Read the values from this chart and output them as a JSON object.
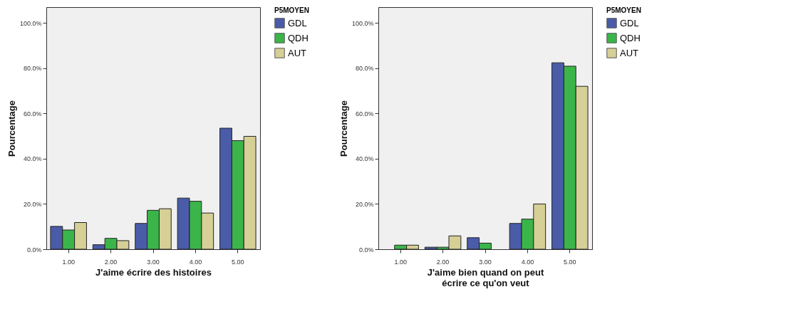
{
  "chart_data": [
    {
      "type": "bar",
      "xlabel": "J'aime écrire des histoires",
      "ylabel": "Pourcentage",
      "legend_title": "P5MOYEN",
      "legend": "top right",
      "grid": false,
      "categories": [
        "1.00",
        "2.00",
        "3.00",
        "4.00",
        "5.00"
      ],
      "ylim": [
        0,
        107
      ],
      "yticks": [
        {
          "value": 0,
          "label": "0.0%"
        },
        {
          "value": 20,
          "label": "20.0%"
        },
        {
          "value": 40,
          "label": "40.0%"
        },
        {
          "value": 60,
          "label": "60.0%"
        },
        {
          "value": 80,
          "label": "80.0%"
        },
        {
          "value": 100,
          "label": "100.0%"
        }
      ],
      "series": [
        {
          "name": "GDL",
          "color": "#4a5ca8",
          "values": [
            10.1,
            2.0,
            11.4,
            22.6,
            53.5
          ]
        },
        {
          "name": "QDH",
          "color": "#3bb54a",
          "values": [
            8.5,
            4.8,
            17.2,
            21.2,
            48.0
          ]
        },
        {
          "name": "AUT",
          "color": "#d6cf96",
          "values": [
            11.8,
            3.8,
            17.9,
            16.0,
            49.9
          ]
        }
      ]
    },
    {
      "type": "bar",
      "xlabel": "J'aime bien quand on peut\nécrire ce qu'on veut",
      "ylabel": "Pourcentage",
      "legend_title": "P5MOYEN",
      "legend": "top right",
      "grid": false,
      "categories": [
        "1.00",
        "2.00",
        "3.00",
        "4.00",
        "5.00"
      ],
      "ylim": [
        0,
        107
      ],
      "yticks": [
        {
          "value": 0,
          "label": "0.0%"
        },
        {
          "value": 20,
          "label": "20.0%"
        },
        {
          "value": 40,
          "label": "40.0%"
        },
        {
          "value": 60,
          "label": "60.0%"
        },
        {
          "value": 80,
          "label": "80.0%"
        },
        {
          "value": 100,
          "label": "100.0%"
        }
      ],
      "series": [
        {
          "name": "GDL",
          "color": "#4a5ca8",
          "values": [
            null,
            0.9,
            5.1,
            11.4,
            82.4
          ]
        },
        {
          "name": "QDH",
          "color": "#3bb54a",
          "values": [
            1.8,
            0.9,
            2.7,
            13.3,
            80.9
          ]
        },
        {
          "name": "AUT",
          "color": "#d6cf96",
          "values": [
            1.8,
            5.9,
            null,
            20.0,
            72.0
          ]
        }
      ]
    }
  ]
}
